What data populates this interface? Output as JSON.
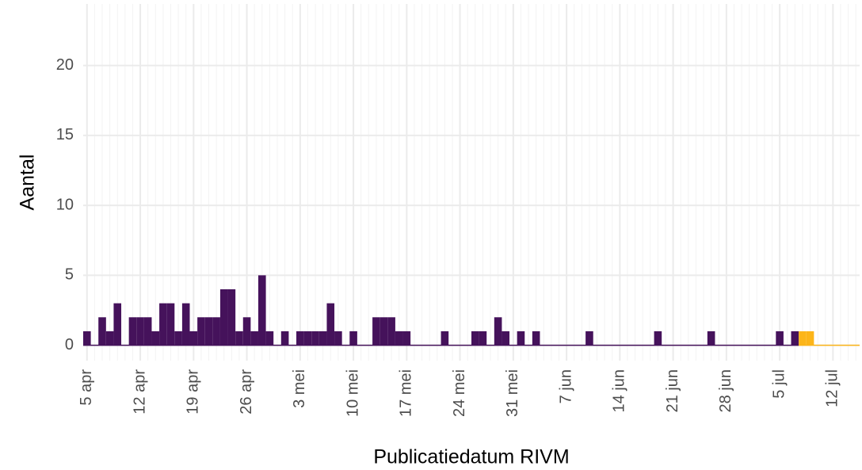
{
  "chart_data": {
    "type": "bar",
    "x_label": "Publicatiedatum RIVM",
    "y_label": "Aantal",
    "categories": [
      "5 apr",
      null,
      null,
      null,
      null,
      null,
      null,
      "12 apr",
      null,
      null,
      null,
      null,
      null,
      null,
      "19 apr",
      null,
      null,
      null,
      null,
      null,
      null,
      "26 apr",
      null,
      null,
      null,
      null,
      null,
      null,
      "3 mei",
      null,
      null,
      null,
      null,
      null,
      null,
      "10 mei",
      null,
      null,
      null,
      null,
      null,
      null,
      "17 mei",
      null,
      null,
      null,
      null,
      null,
      null,
      "24 mei",
      null,
      null,
      null,
      null,
      null,
      null,
      "31 mei",
      null,
      null,
      null,
      null,
      null,
      null,
      "7 jun",
      null,
      null,
      null,
      null,
      null,
      null,
      "14 jun",
      null,
      null,
      null,
      null,
      null,
      null,
      "21 jun",
      null,
      null,
      null,
      null,
      null,
      null,
      "28 jun",
      null,
      null,
      null,
      null,
      null,
      null,
      "5 jul",
      null,
      null,
      null,
      null,
      null,
      null,
      "12 jul",
      null,
      null,
      null
    ],
    "series": [
      {
        "color": "#45125b",
        "values": [
          1,
          0,
          2,
          1,
          3,
          0,
          2,
          2,
          2,
          1,
          3,
          3,
          1,
          3,
          1,
          2,
          2,
          2,
          4,
          4,
          1,
          2,
          1,
          5,
          1,
          0,
          1,
          0,
          1,
          1,
          1,
          1,
          3,
          1,
          0,
          1,
          0,
          0,
          2,
          2,
          2,
          1,
          1,
          0,
          0,
          0,
          0,
          1,
          0,
          0,
          0,
          1,
          1,
          0,
          2,
          1,
          0,
          1,
          0,
          1,
          0,
          0,
          0,
          0,
          0,
          0,
          1,
          0,
          0,
          0,
          0,
          0,
          0,
          0,
          0,
          1,
          0,
          0,
          0,
          0,
          0,
          0,
          1,
          0,
          0,
          0,
          0,
          0,
          0,
          0,
          0,
          1,
          0,
          1,
          null,
          null,
          null,
          null,
          null,
          null,
          null,
          null
        ]
      },
      {
        "color": "#fcb519",
        "values": [
          null,
          null,
          null,
          null,
          null,
          null,
          null,
          null,
          null,
          null,
          null,
          null,
          null,
          null,
          null,
          null,
          null,
          null,
          null,
          null,
          null,
          null,
          null,
          null,
          null,
          null,
          null,
          null,
          null,
          null,
          null,
          null,
          null,
          null,
          null,
          null,
          null,
          null,
          null,
          null,
          null,
          null,
          null,
          null,
          null,
          null,
          null,
          null,
          null,
          null,
          null,
          null,
          null,
          null,
          null,
          null,
          null,
          null,
          null,
          null,
          null,
          null,
          null,
          null,
          null,
          null,
          null,
          null,
          null,
          null,
          null,
          null,
          null,
          null,
          null,
          null,
          null,
          null,
          null,
          null,
          null,
          null,
          null,
          null,
          null,
          null,
          null,
          null,
          null,
          null,
          null,
          null,
          null,
          null,
          1,
          1,
          0,
          0,
          0,
          0,
          0,
          0
        ]
      }
    ],
    "ylim": [
      -1.1,
      24.4
    ],
    "yticks": [
      0,
      5,
      10,
      15,
      20
    ],
    "grid": true
  }
}
